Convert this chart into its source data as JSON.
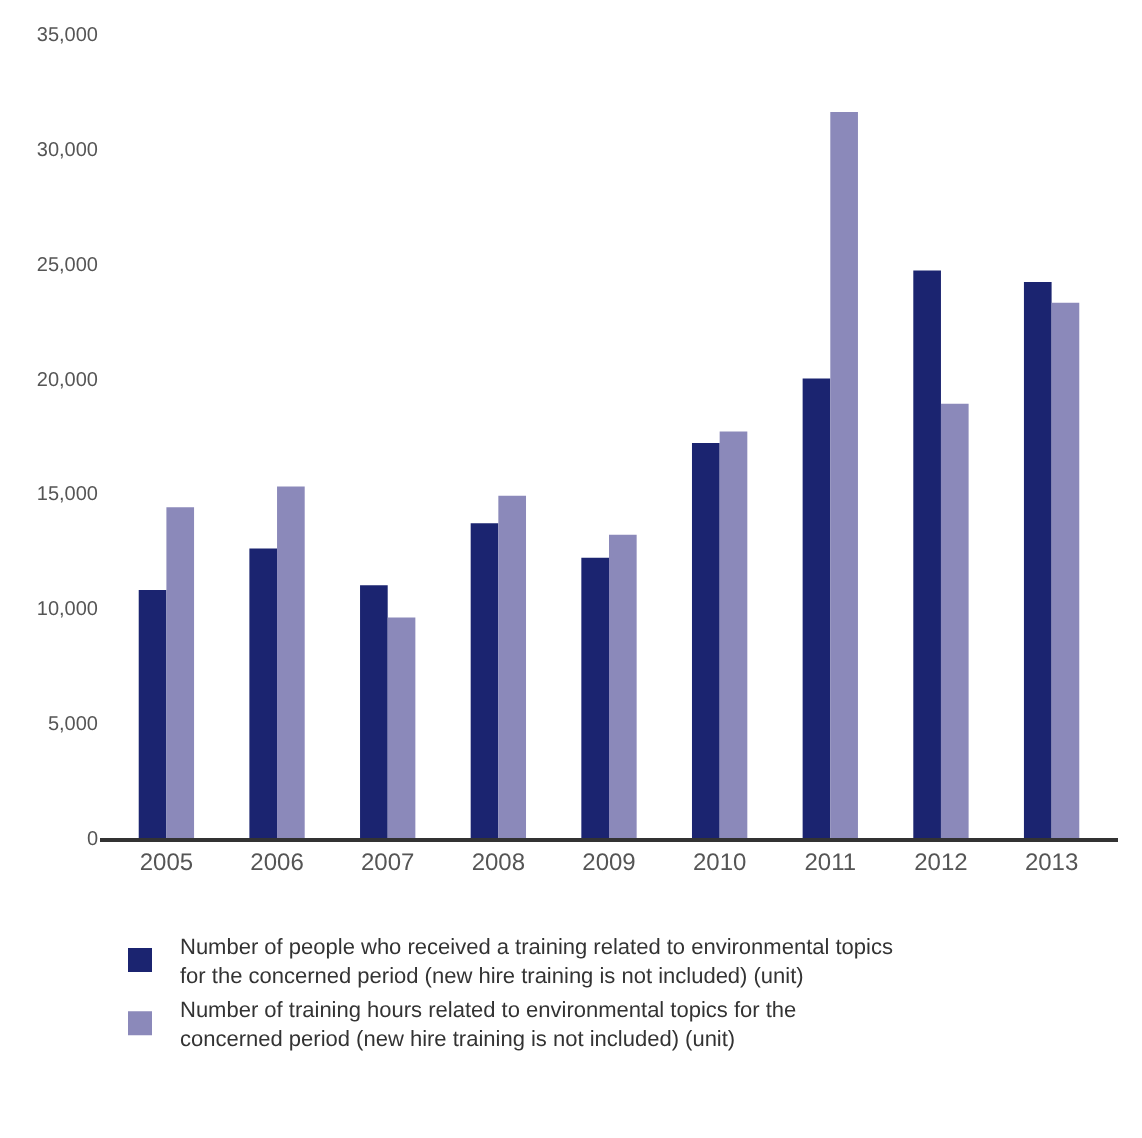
{
  "chart_data": {
    "type": "bar",
    "categories": [
      "2005",
      "2006",
      "2007",
      "2008",
      "2009",
      "2010",
      "2011",
      "2012",
      "2013"
    ],
    "series": [
      {
        "name": "Number of people who received a training related to environmental topics for the concerned period (new hire training is not included) (unit)",
        "color": "#1b2470",
        "values": [
          10800,
          12600,
          11000,
          13700,
          12200,
          17200,
          20000,
          24700,
          24200
        ]
      },
      {
        "name": "Number of training hours related to environmental topics for the concerned period (new hire training is not included) (unit)",
        "color": "#8b89ba",
        "values": [
          14400,
          15300,
          9600,
          14900,
          13200,
          17700,
          31600,
          18900,
          23300
        ]
      }
    ],
    "ylim": [
      0,
      35000
    ],
    "yticks": [
      {
        "value": 0,
        "label": "0"
      },
      {
        "value": 5000,
        "label": "5,000"
      },
      {
        "value": 10000,
        "label": "10,000"
      },
      {
        "value": 15000,
        "label": "15,000"
      },
      {
        "value": 20000,
        "label": "20,000"
      },
      {
        "value": 25000,
        "label": "25,000"
      },
      {
        "value": 30000,
        "label": "30,000"
      },
      {
        "value": 35000,
        "label": "35,000"
      }
    ],
    "legend": "bottom"
  }
}
